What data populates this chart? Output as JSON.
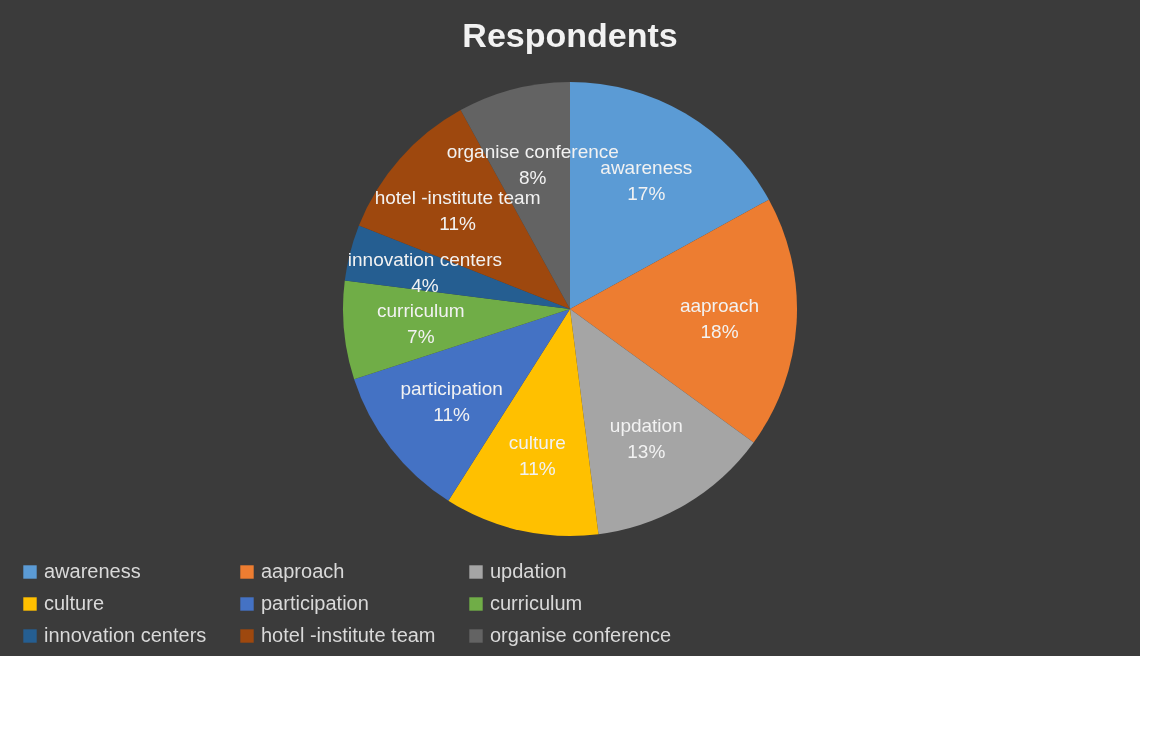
{
  "chart_data": {
    "type": "pie",
    "title": "Respondents",
    "categories": [
      "awareness",
      "aaproach",
      "updation",
      "culture",
      "participation",
      "curriculum",
      "innovation centers",
      "hotel -institute team",
      "organise conference"
    ],
    "values": [
      17,
      18,
      13,
      11,
      11,
      7,
      4,
      11,
      8
    ],
    "value_labels": [
      "17%",
      "18%",
      "13%",
      "11%",
      "11%",
      "7%",
      "4%",
      "11%",
      "8%"
    ],
    "colors": [
      "#5b9bd5",
      "#ed7d31",
      "#a5a5a5",
      "#ffc000",
      "#4472c4",
      "#70ad47",
      "#255e91",
      "#9e480e",
      "#636363"
    ],
    "legend": "bottom"
  }
}
